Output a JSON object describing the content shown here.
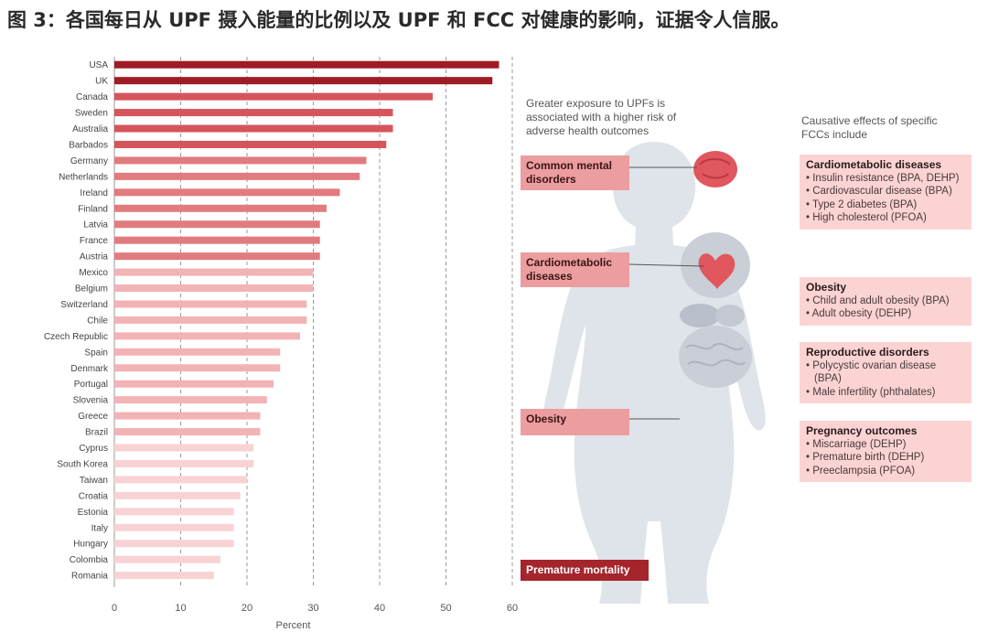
{
  "figure_title": "图 3：各国每日从 UPF 摄入能量的比例以及 UPF 和 FCC 对健康的影响，证据令人信服。",
  "chart_data": {
    "type": "bar",
    "orientation": "horizontal",
    "categories": [
      "USA",
      "UK",
      "Canada",
      "Sweden",
      "Australia",
      "Barbados",
      "Germany",
      "Netherlands",
      "Ireland",
      "Finland",
      "Latvia",
      "France",
      "Austria",
      "Mexico",
      "Belgium",
      "Switzerland",
      "Chile",
      "Czech Republic",
      "Spain",
      "Denmark",
      "Portugal",
      "Slovenia",
      "Greece",
      "Brazil",
      "Cyprus",
      "South Korea",
      "Taiwan",
      "Croatia",
      "Estonia",
      "Italy",
      "Hungary",
      "Colombia",
      "Romania"
    ],
    "values": [
      58,
      57,
      48,
      42,
      42,
      41,
      38,
      37,
      34,
      32,
      31,
      31,
      31,
      30,
      30,
      29,
      29,
      28,
      25,
      25,
      24,
      23,
      22,
      22,
      21,
      21,
      20,
      19,
      18,
      18,
      18,
      16,
      15
    ],
    "bar_colors": [
      "#9e1c23",
      "#9e1c23",
      "#d5555b",
      "#d5555b",
      "#d5555b",
      "#d5555b",
      "#e27b7f",
      "#e27b7f",
      "#e27b7f",
      "#e27b7f",
      "#e27b7f",
      "#e27b7f",
      "#e27b7f",
      "#f1b3b5",
      "#f1b3b5",
      "#f1b3b5",
      "#f1b3b5",
      "#f1b3b5",
      "#f1b3b5",
      "#f1b3b5",
      "#f1b3b5",
      "#f1b3b5",
      "#f1b3b5",
      "#f1b3b5",
      "#f9d2d3",
      "#f9d2d3",
      "#f9d2d3",
      "#f9d2d3",
      "#f9d2d3",
      "#f9d2d3",
      "#f9d2d3",
      "#f9d2d3",
      "#f9d2d3"
    ],
    "xlabel": "Percent",
    "xlim": [
      0,
      60
    ],
    "xticks": [
      0,
      10,
      20,
      30,
      40,
      50,
      60
    ],
    "grid": "dashed vertical"
  },
  "outcomes": {
    "intro": "Greater exposure to UPFs is associated with a higher risk of adverse health outcomes",
    "labels": [
      "Common mental disorders",
      "Cardiometabolic diseases",
      "Obesity",
      "Premature mortality"
    ]
  },
  "fcc_effects": {
    "intro": "Causative effects of specific FCCs include",
    "groups": [
      {
        "title": "Cardiometabolic diseases",
        "items": [
          "Insulin resistance (BPA, DEHP)",
          "Cardiovascular disease (BPA)",
          "Type 2 diabetes (BPA)",
          "High cholesterol (PFOA)"
        ]
      },
      {
        "title": "Obesity",
        "items": [
          "Child and adult obesity (BPA)",
          "Adult obesity (DEHP)"
        ]
      },
      {
        "title": "Reproductive disorders",
        "items": [
          "Polycystic ovarian disease (BPA)",
          "Male infertility (phthalates)"
        ]
      },
      {
        "title": "Pregnancy outcomes",
        "items": [
          "Miscarriage (DEHP)",
          "Premature birth (DEHP)",
          "Preeclampsia (PFOA)"
        ]
      }
    ]
  },
  "colors": {
    "dark_red": "#9e1c23",
    "label_pink": "#ec9da0",
    "panel_pink": "#fbd3d3",
    "body_grey": "#dfe3ea"
  }
}
